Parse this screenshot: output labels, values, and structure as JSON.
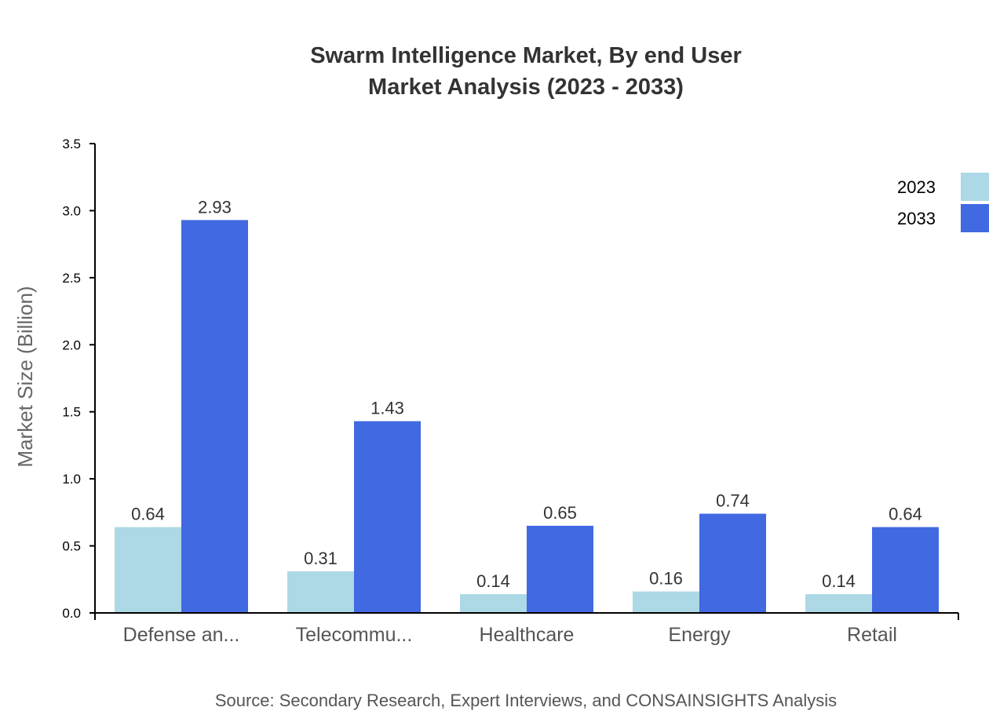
{
  "chart_data": {
    "type": "bar",
    "title": [
      "Swarm Intelligence Market, By end User",
      "Market Analysis (2023 - 2033)"
    ],
    "xlabel": "",
    "ylabel": "Market Size (Billion)",
    "ylim": [
      0,
      3.5
    ],
    "yticks": [
      "0.0",
      "0.5",
      "1.0",
      "1.5",
      "2.0",
      "2.5",
      "3.0",
      "3.5"
    ],
    "categories": [
      "Defense an...",
      "Telecommu...",
      "Healthcare",
      "Energy",
      "Retail"
    ],
    "series": [
      {
        "name": "2023",
        "color": "#ADD8E6",
        "values": [
          0.64,
          0.31,
          0.14,
          0.16,
          0.14
        ]
      },
      {
        "name": "2033",
        "color": "#4169E1",
        "values": [
          2.93,
          1.43,
          0.65,
          0.74,
          0.64
        ]
      }
    ],
    "grid": false,
    "legend": "top-right"
  },
  "source": "Source: Secondary Research, Expert Interviews, and CONSAINSIGHTS Analysis"
}
